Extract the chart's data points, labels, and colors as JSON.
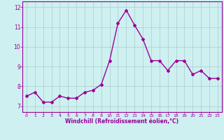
{
  "x": [
    0,
    1,
    2,
    3,
    4,
    5,
    6,
    7,
    8,
    9,
    10,
    11,
    12,
    13,
    14,
    15,
    16,
    17,
    18,
    19,
    20,
    21,
    22,
    23
  ],
  "y": [
    7.5,
    7.7,
    7.2,
    7.2,
    7.5,
    7.4,
    7.4,
    7.7,
    7.8,
    8.1,
    9.3,
    11.2,
    11.85,
    11.1,
    10.4,
    9.3,
    9.3,
    8.8,
    9.3,
    9.3,
    8.6,
    8.8,
    8.4,
    8.4
  ],
  "line_color": "#990099",
  "marker": "D",
  "marker_size": 2.0,
  "bg_color": "#cff0f0",
  "grid_color": "#aacccc",
  "xlabel": "Windchill (Refroidissement éolien,°C)",
  "xlabel_color": "#990099",
  "tick_color": "#990099",
  "ylim": [
    6.7,
    12.3
  ],
  "xlim": [
    -0.5,
    23.5
  ],
  "yticks": [
    7,
    8,
    9,
    10,
    11,
    12
  ],
  "xticks": [
    0,
    1,
    2,
    3,
    4,
    5,
    6,
    7,
    8,
    9,
    10,
    11,
    12,
    13,
    14,
    15,
    16,
    17,
    18,
    19,
    20,
    21,
    22,
    23
  ],
  "linewidth": 1.0
}
